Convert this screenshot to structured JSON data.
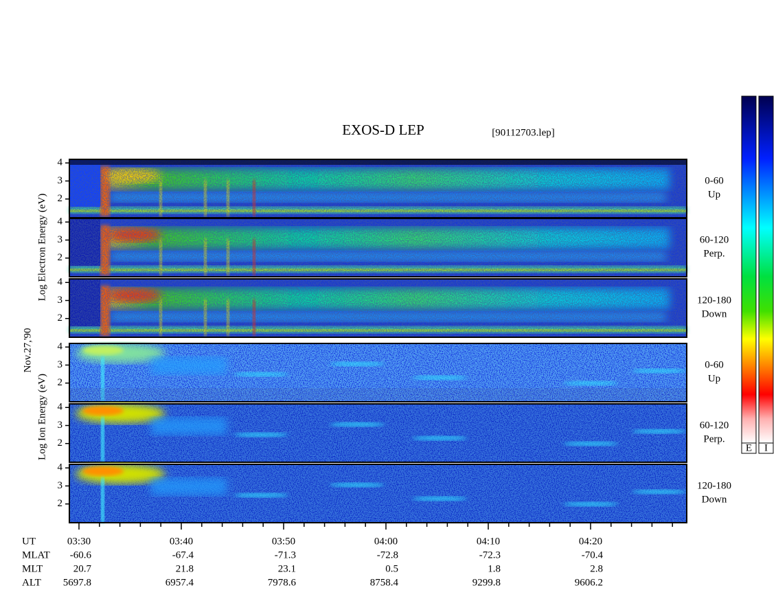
{
  "chart_data": {
    "type": "spectrogram",
    "title": "EXOS-D LEP",
    "file_label": "[90112703.lep]",
    "date_label": "Nov.27,'90",
    "groups": [
      {
        "label": "Log  Electron  Energy  (eV)"
      },
      {
        "label": "Log  Ion  Energy  (eV)"
      }
    ],
    "panels": [
      {
        "species": 0,
        "side_label": [
          "0-60",
          "Up"
        ],
        "ylim": [
          0.96,
          4.2
        ],
        "yticks": [
          2,
          3,
          4
        ]
      },
      {
        "species": 0,
        "side_label": [
          "60-120",
          "Perp."
        ],
        "ylim": [
          0.96,
          4.2
        ],
        "yticks": [
          2,
          3,
          4
        ]
      },
      {
        "species": 0,
        "side_label": [
          "120-180",
          "Down"
        ],
        "ylim": [
          0.96,
          4.2
        ],
        "yticks": [
          2,
          3,
          4
        ]
      },
      {
        "species": 1,
        "side_label": [
          "0-60",
          "Up"
        ],
        "ylim": [
          0.96,
          4.2
        ],
        "yticks": [
          2,
          3,
          4
        ]
      },
      {
        "species": 1,
        "side_label": [
          "60-120",
          "Perp."
        ],
        "ylim": [
          0.96,
          4.2
        ],
        "yticks": [
          2,
          3,
          4
        ]
      },
      {
        "species": 1,
        "side_label": [
          "120-180",
          "Down"
        ],
        "ylim": [
          0.96,
          4.2
        ],
        "yticks": [
          2,
          3,
          4
        ]
      }
    ],
    "x_label": "UT",
    "categories": [
      "03:30",
      null,
      null,
      null,
      null,
      "03:40",
      null,
      null,
      null,
      null,
      "03:50",
      null,
      null,
      null,
      null,
      "04:00",
      null,
      null,
      null,
      null,
      "04:10",
      null,
      null,
      null,
      null,
      "04:20",
      null,
      null,
      null,
      null
    ],
    "ephemeris": [
      {
        "label": "MLAT",
        "values": [
          -60.6,
          null,
          null,
          null,
          null,
          -67.4,
          null,
          null,
          null,
          null,
          -71.3,
          null,
          null,
          null,
          null,
          -72.8,
          null,
          null,
          null,
          null,
          -72.3,
          null,
          null,
          null,
          null,
          -70.4,
          null,
          null,
          null,
          null
        ]
      },
      {
        "label": "MLT",
        "values": [
          20.7,
          null,
          null,
          null,
          null,
          21.8,
          null,
          null,
          null,
          null,
          23.1,
          null,
          null,
          null,
          null,
          0.5,
          null,
          null,
          null,
          null,
          1.8,
          null,
          null,
          null,
          null,
          2.8,
          null,
          null,
          null,
          null
        ]
      },
      {
        "label": "ALT",
        "values": [
          5697.8,
          null,
          null,
          null,
          null,
          6957.4,
          null,
          null,
          null,
          null,
          7978.6,
          null,
          null,
          null,
          null,
          8758.4,
          null,
          null,
          null,
          null,
          9299.8,
          null,
          null,
          null,
          null,
          9606.2,
          null,
          null,
          null,
          null
        ]
      }
    ],
    "colorbar_labels": [
      "E",
      "I"
    ]
  }
}
